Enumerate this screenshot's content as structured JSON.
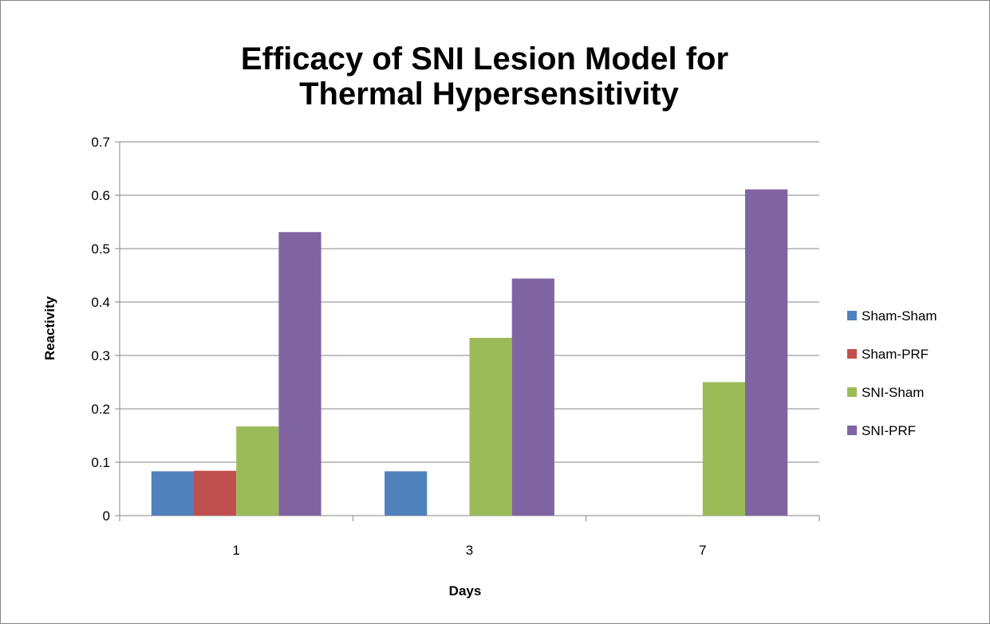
{
  "chart_data": {
    "type": "bar",
    "title": "Efficacy of SNI Lesion Model for Thermal Hypersensitivity",
    "x_label": "Days",
    "y_label": "Reactivity",
    "categories": [
      "1",
      "3",
      "7"
    ],
    "series": [
      {
        "name": "Sham-Sham",
        "color": "#4f81bd",
        "values": [
          0.083,
          0.083,
          0
        ]
      },
      {
        "name": "Sham-PRF",
        "color": "#c0504d",
        "values": [
          0.084,
          0,
          0
        ]
      },
      {
        "name": "SNI-Sham",
        "color": "#9bbb59",
        "values": [
          0.167,
          0.333,
          0.25
        ]
      },
      {
        "name": "SNI-PRF",
        "color": "#8064a2",
        "values": [
          0.531,
          0.444,
          0.611
        ]
      }
    ],
    "ylim": [
      0,
      0.7
    ],
    "yticks": [
      0,
      0.1,
      0.2,
      0.3,
      0.4,
      0.5,
      0.6,
      0.7
    ],
    "grid": true,
    "legend": "right"
  }
}
